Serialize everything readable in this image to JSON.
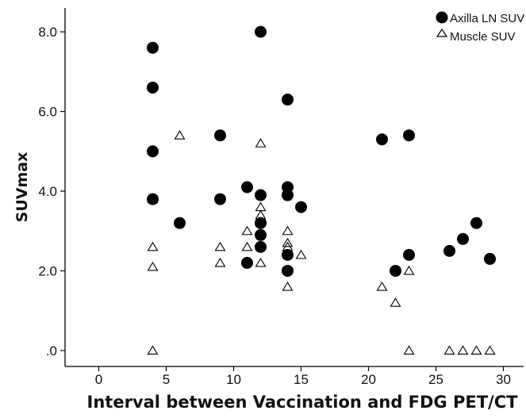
{
  "chart_data": {
    "type": "scatter",
    "title": "",
    "xlabel": "Interval between Vaccination and FDG PET/CT",
    "ylabel": "SUVmax",
    "xlim": [
      -2.5,
      31.5
    ],
    "ylim": [
      -0.4,
      8.6
    ],
    "x_ticks": [
      0,
      5,
      10,
      15,
      20,
      25,
      30
    ],
    "x_tick_labels": [
      "0",
      "5",
      "10",
      "15",
      "20",
      "25",
      "30"
    ],
    "y_ticks": [
      0,
      2,
      4,
      6,
      8
    ],
    "y_tick_labels": [
      ".0",
      "2.0",
      "4.0",
      "6.0",
      "8.0"
    ],
    "grid": false,
    "legend_position": "top-right",
    "series": [
      {
        "name": "Axilla LN SUV",
        "marker": "filled-circle",
        "color": "#000000",
        "points": [
          [
            4,
            7.6
          ],
          [
            4,
            6.6
          ],
          [
            4,
            5.0
          ],
          [
            4,
            3.8
          ],
          [
            6,
            3.2
          ],
          [
            9,
            5.4
          ],
          [
            9,
            3.8
          ],
          [
            11,
            4.1
          ],
          [
            11,
            2.2
          ],
          [
            12,
            8.0
          ],
          [
            12,
            3.9
          ],
          [
            12,
            3.2
          ],
          [
            12,
            2.9
          ],
          [
            12,
            2.6
          ],
          [
            14,
            6.3
          ],
          [
            14,
            4.1
          ],
          [
            14,
            3.9
          ],
          [
            14,
            2.4
          ],
          [
            14,
            2.0
          ],
          [
            15,
            3.6
          ],
          [
            21,
            5.3
          ],
          [
            22,
            2.0
          ],
          [
            23,
            5.4
          ],
          [
            23,
            2.4
          ],
          [
            26,
            2.5
          ],
          [
            27,
            2.8
          ],
          [
            28,
            3.2
          ],
          [
            29,
            2.3
          ]
        ]
      },
      {
        "name": "Muscle SUV",
        "marker": "open-triangle",
        "color": "#000000",
        "points": [
          [
            4,
            3.8
          ],
          [
            4,
            2.6
          ],
          [
            4,
            2.1
          ],
          [
            4,
            0.0
          ],
          [
            6,
            5.4
          ],
          [
            9,
            2.6
          ],
          [
            9,
            2.2
          ],
          [
            11,
            3.0
          ],
          [
            11,
            2.6
          ],
          [
            12,
            5.2
          ],
          [
            12,
            3.6
          ],
          [
            12,
            3.4
          ],
          [
            12,
            2.2
          ],
          [
            14,
            3.0
          ],
          [
            14,
            2.7
          ],
          [
            14,
            2.6
          ],
          [
            14,
            1.6
          ],
          [
            15,
            2.4
          ],
          [
            21,
            1.6
          ],
          [
            22,
            1.2
          ],
          [
            23,
            2.0
          ],
          [
            23,
            0.0
          ],
          [
            26,
            0.0
          ],
          [
            27,
            0.0
          ],
          [
            28,
            0.0
          ],
          [
            29,
            0.0
          ]
        ]
      }
    ]
  }
}
